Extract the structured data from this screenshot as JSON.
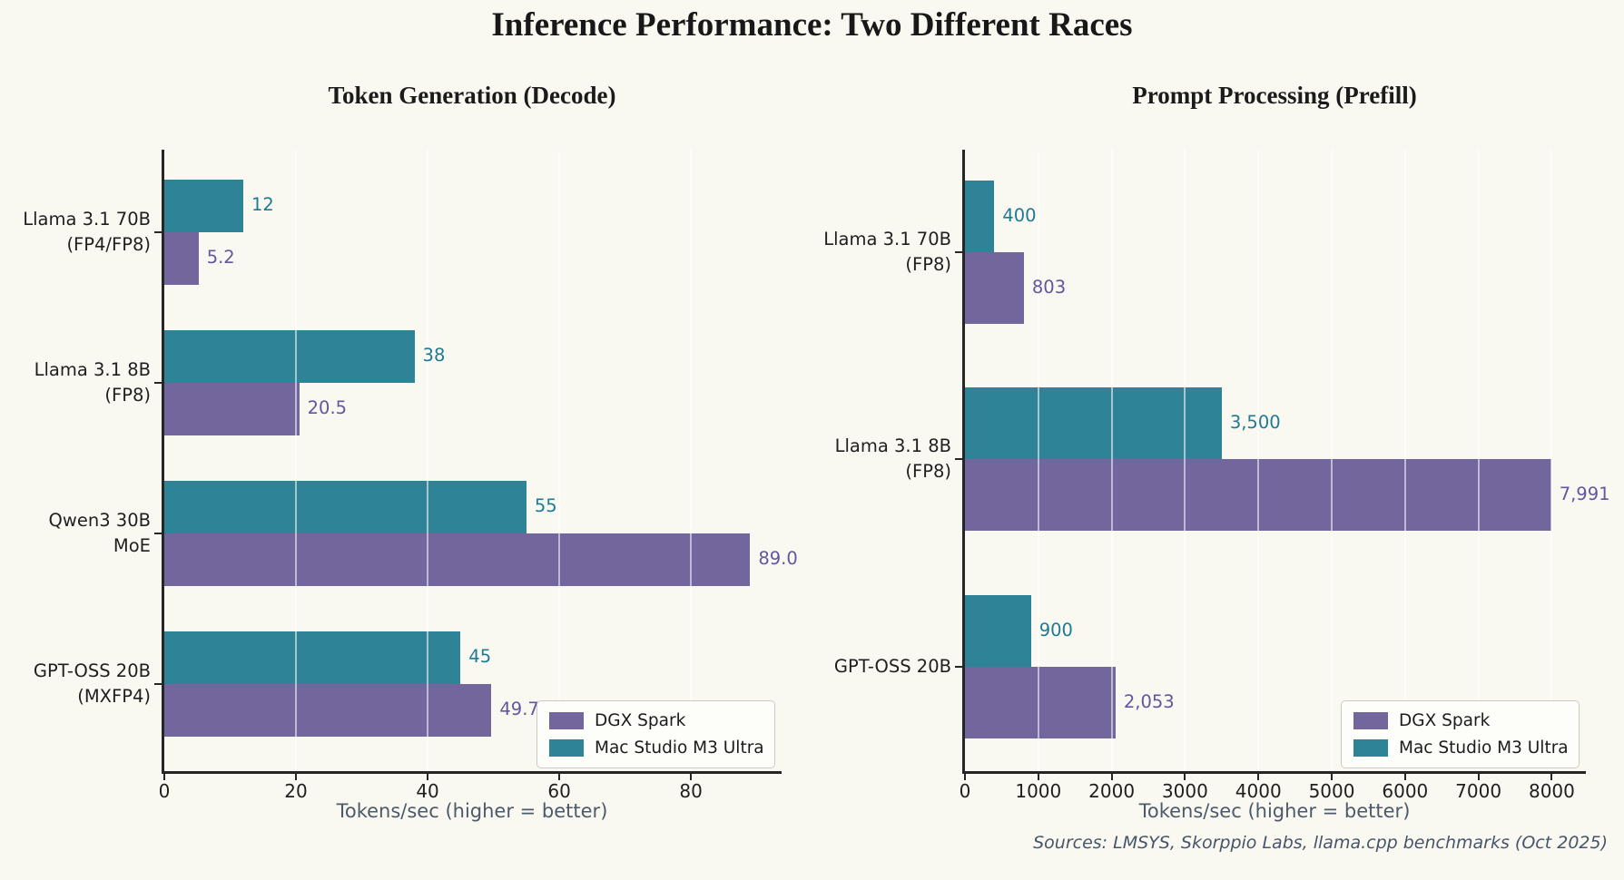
{
  "figure": {
    "title": "Inference Performance: Two Different Races",
    "source_note": "Sources: LMSYS, Skorppio Labs, llama.cpp benchmarks (Oct 2025)",
    "background": "#FAF9F1"
  },
  "colors": {
    "dgx_spark_bar": "#72669D",
    "mac_studio_bar": "#2F8396",
    "dgx_spark_value_label": "#63569E",
    "mac_studio_value_label": "#1F7A96",
    "axis_spine": "#262626",
    "slate_text": "#4C5A6C"
  },
  "legend": {
    "items": [
      {
        "label": "DGX Spark",
        "color": "#72669D"
      },
      {
        "label": "Mac Studio M3 Ultra",
        "color": "#2F8396"
      }
    ]
  },
  "chart_data": [
    {
      "type": "bar",
      "orientation": "horizontal",
      "title": "Token Generation (Decode)",
      "xlabel": "Tokens/sec (higher = better)",
      "xlim": [
        0,
        93.5
      ],
      "tick_values": [
        0,
        20,
        40,
        60,
        80
      ],
      "tick_labels": [
        "0",
        "20",
        "40",
        "60",
        "80"
      ],
      "grid": true,
      "legend_position": "lower right",
      "categories": [
        [
          "Llama 3.1 70B",
          "(FP4/FP8)"
        ],
        [
          "Llama 3.1 8B",
          "(FP8)"
        ],
        [
          "Qwen3 30B",
          "MoE"
        ],
        [
          "GPT-OSS 20B",
          "(MXFP4)"
        ]
      ],
      "series": [
        {
          "name": "Mac Studio M3 Ultra",
          "color": "#2F8396",
          "label_color": "#1F7A96",
          "values": [
            12,
            38,
            55,
            45
          ],
          "value_labels": [
            "12",
            "38",
            "55",
            "45"
          ]
        },
        {
          "name": "DGX Spark",
          "color": "#72669D",
          "label_color": "#63569E",
          "values": [
            5.2,
            20.5,
            89.0,
            49.7
          ],
          "value_labels": [
            "5.2",
            "20.5",
            "89.0",
            "49.7"
          ]
        }
      ]
    },
    {
      "type": "bar",
      "orientation": "horizontal",
      "title": "Prompt Processing (Prefill)",
      "xlabel": "Tokens/sec (higher = better)",
      "xlim": [
        0,
        8440
      ],
      "tick_values": [
        0,
        1000,
        2000,
        3000,
        4000,
        5000,
        6000,
        7000,
        8000
      ],
      "tick_labels": [
        "0",
        "1000",
        "2000",
        "3000",
        "4000",
        "5000",
        "6000",
        "7000",
        "8000"
      ],
      "grid": true,
      "legend_position": "lower right",
      "categories": [
        [
          "Llama 3.1 70B",
          "(FP8)"
        ],
        [
          "Llama 3.1 8B",
          "(FP8)"
        ],
        [
          "GPT-OSS 20B"
        ]
      ],
      "series": [
        {
          "name": "Mac Studio M3 Ultra",
          "color": "#2F8396",
          "label_color": "#1F7A96",
          "values": [
            400,
            3500,
            900
          ],
          "value_labels": [
            "400",
            "3,500",
            "900"
          ]
        },
        {
          "name": "DGX Spark",
          "color": "#72669D",
          "label_color": "#63569E",
          "values": [
            803,
            7991,
            2053
          ],
          "value_labels": [
            "803",
            "7,991",
            "2,053"
          ]
        }
      ]
    }
  ]
}
